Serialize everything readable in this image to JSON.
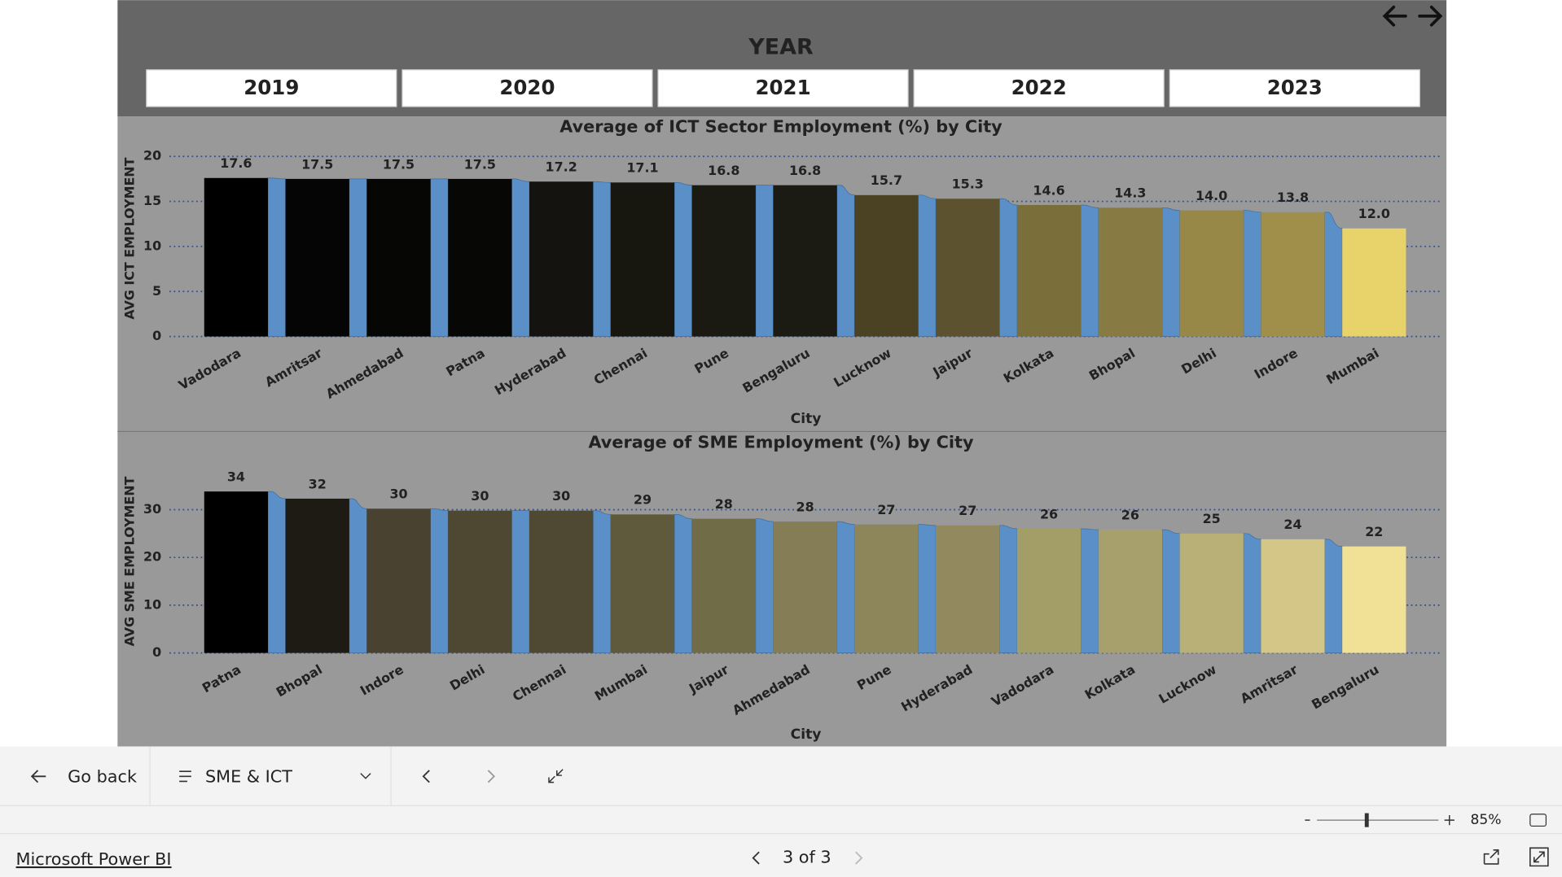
{
  "slicer": {
    "title": "YEAR",
    "options": [
      "2019",
      "2020",
      "2021",
      "2022",
      "2023"
    ]
  },
  "chart_data": [
    {
      "type": "ribbon",
      "title": "Average of ICT Sector Employment (%) by City",
      "x_label": "City",
      "y_label": "AVG ICT EMPLOYMENT",
      "categories": [
        "Vadodara",
        "Amritsar",
        "Ahmedabad",
        "Patna",
        "Hyderabad",
        "Chennai",
        "Pune",
        "Bengaluru",
        "Lucknow",
        "Jaipur",
        "Kolkata",
        "Bhopal",
        "Delhi",
        "Indore",
        "Mumbai"
      ],
      "values": [
        17.6,
        17.5,
        17.5,
        17.5,
        17.2,
        17.1,
        16.8,
        16.8,
        15.7,
        15.3,
        14.6,
        14.3,
        14,
        13.8,
        12
      ],
      "value_labels": [
        "17.6",
        "17.5",
        "17.5",
        "17.5",
        "17.2",
        "17.1",
        "16.8",
        "16.8",
        "15.7",
        "15.3",
        "14.6",
        "14.3",
        "14.0",
        "13.8",
        "12.0"
      ],
      "colors": [
        "#000000",
        "#050505",
        "#060605",
        "#070706",
        "#141310",
        "#17160f",
        "#1b1a12",
        "#1c1b13",
        "#4a4223",
        "#5c5230",
        "#7a6f3a",
        "#877a42",
        "#978848",
        "#a08f4a",
        "#e8d26a"
      ],
      "ribbon_color": "#5b8fc7",
      "ylim": [
        0,
        20
      ],
      "yticks": [
        0,
        5,
        10,
        15,
        20
      ],
      "grid": true
    },
    {
      "type": "ribbon",
      "title": "Average of SME Employment (%) by City",
      "x_label": "City",
      "y_label": "AVG SME EMPLOYMENT",
      "categories": [
        "Patna",
        "Bhopal",
        "Indore",
        "Delhi",
        "Chennai",
        "Mumbai",
        "Jaipur",
        "Ahmedabad",
        "Pune",
        "Hyderabad",
        "Vadodara",
        "Kolkata",
        "Lucknow",
        "Amritsar",
        "Bengaluru"
      ],
      "values": [
        33.8,
        32.3,
        30.2,
        29.8,
        29.8,
        29,
        28.1,
        27.5,
        26.9,
        26.7,
        26,
        25.8,
        25,
        23.8,
        22.3
      ],
      "value_labels": [
        "34",
        "32",
        "30",
        "30",
        "30",
        "29",
        "28",
        "28",
        "27",
        "27",
        "26",
        "26",
        "25",
        "24",
        "22"
      ],
      "colors": [
        "#000000",
        "#1e1b15",
        "#494230",
        "#4e4832",
        "#4f4933",
        "#5f5a3c",
        "#716c48",
        "#857d55",
        "#8d865a",
        "#928a5e",
        "#a39d68",
        "#a8a06c",
        "#b9b078",
        "#d4c686",
        "#f0e196"
      ],
      "ribbon_color": "#5b8fc7",
      "ylim": [
        0,
        35
      ],
      "yticks": [
        0,
        10,
        20,
        30
      ],
      "grid": true
    }
  ],
  "toolbar": {
    "back": "Go back",
    "page_menu": "SME & ICT"
  },
  "zoom": {
    "level": "85%"
  },
  "footer": {
    "brand": "Microsoft Power BI",
    "pager": "3 of 3"
  }
}
